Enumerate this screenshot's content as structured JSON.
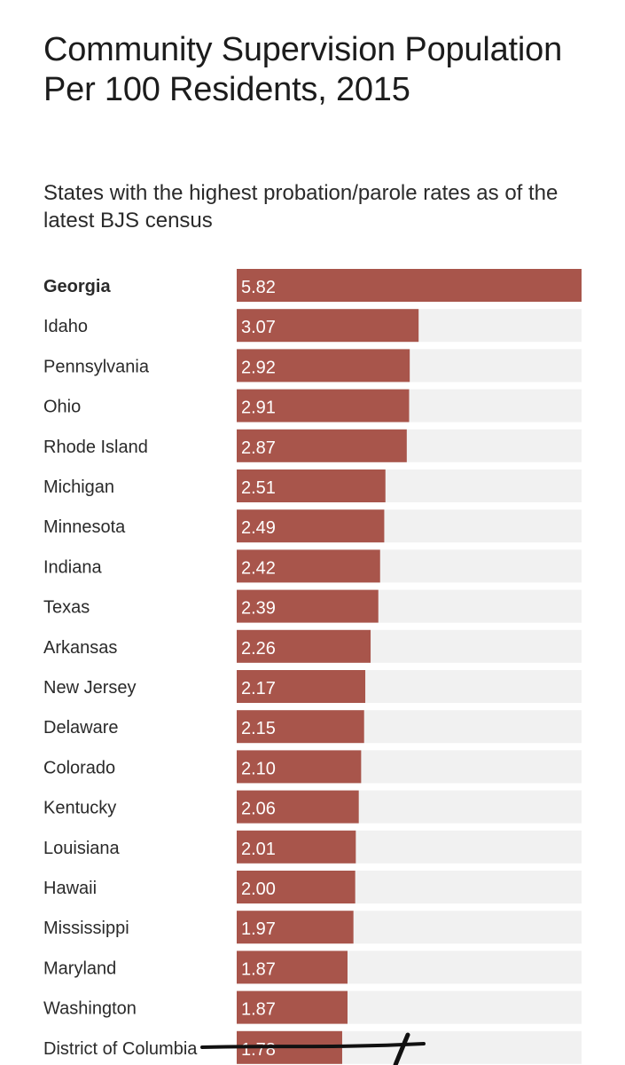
{
  "chart_data": {
    "type": "bar",
    "orientation": "horizontal",
    "title": "Community Supervision Population Per 100 Residents, 2015",
    "subtitle": "States with the highest probation/parole rates as of the latest BJS census",
    "xlim": [
      0,
      5.82
    ],
    "highlighted_category": "Georgia",
    "categories": [
      "Georgia",
      "Idaho",
      "Pennsylvania",
      "Ohio",
      "Rhode Island",
      "Michigan",
      "Minnesota",
      "Indiana",
      "Texas",
      "Arkansas",
      "New Jersey",
      "Delaware",
      "Colorado",
      "Kentucky",
      "Louisiana",
      "Hawaii",
      "Mississippi",
      "Maryland",
      "Washington",
      "District of Columbia"
    ],
    "values": [
      5.82,
      3.07,
      2.92,
      2.91,
      2.87,
      2.51,
      2.49,
      2.42,
      2.39,
      2.26,
      2.17,
      2.15,
      2.1,
      2.06,
      2.01,
      2.0,
      1.97,
      1.87,
      1.87,
      1.78
    ],
    "value_labels": [
      "5.82",
      "3.07",
      "2.92",
      "2.91",
      "2.87",
      "2.51",
      "2.49",
      "2.42",
      "2.39",
      "2.26",
      "2.17",
      "2.15",
      "2.10",
      "2.06",
      "2.01",
      "2.00",
      "1.97",
      "1.87",
      "1.87",
      "1.78"
    ]
  },
  "colors": {
    "bar": "#a8554b",
    "track": "#f1f1f1",
    "label_text": "#2a2a2a",
    "value_text": "#ffffff",
    "scribble": "#111111"
  }
}
